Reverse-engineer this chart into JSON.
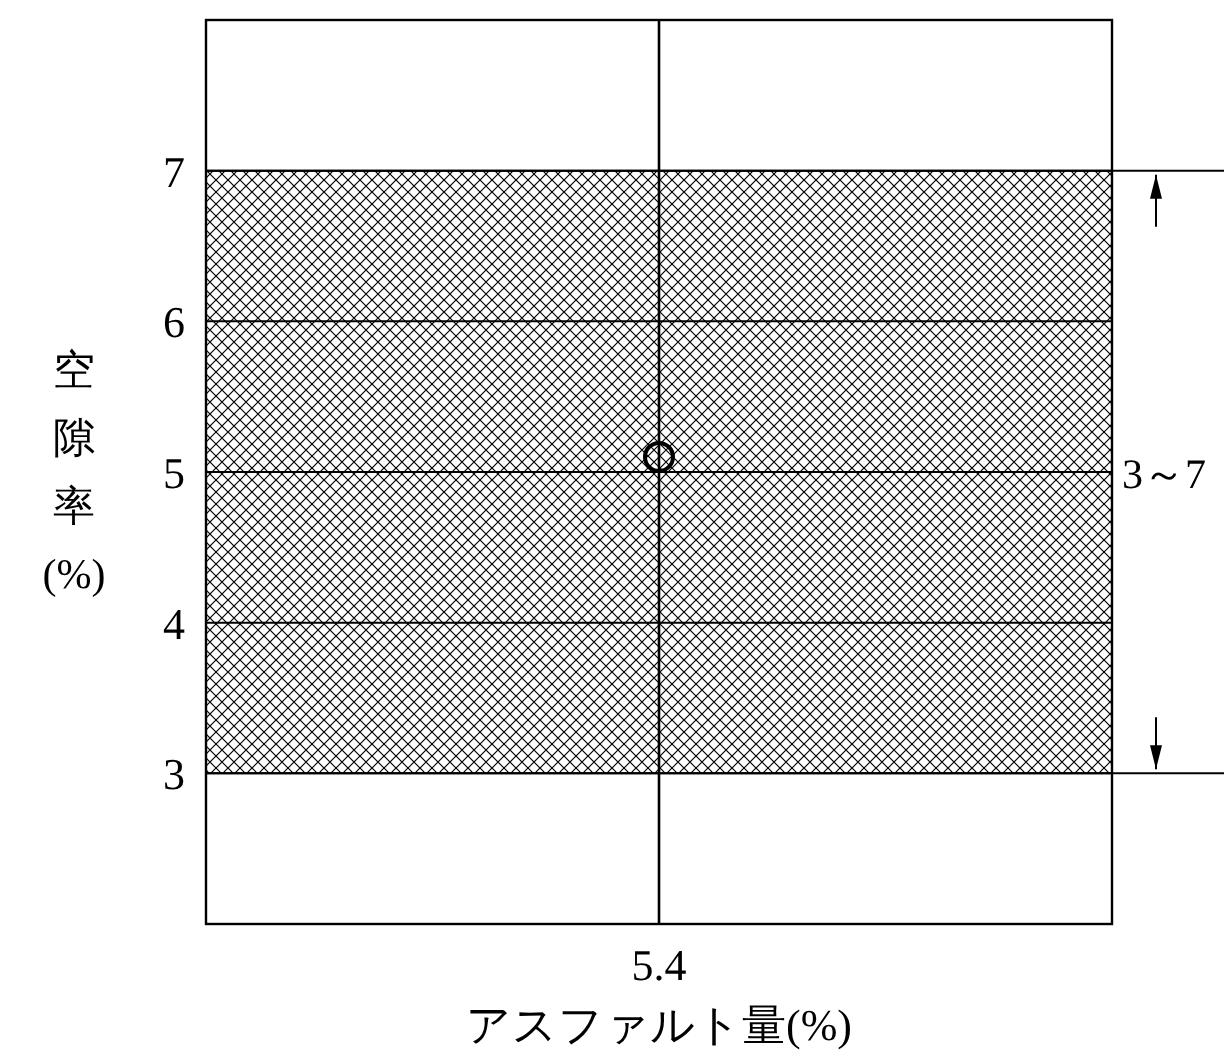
{
  "chart_data": {
    "type": "scatter",
    "xlabel": "アスファルト量(%)",
    "ylabel": "空隙率(%)",
    "categories": [
      "5.4"
    ],
    "values": [
      5.1
    ],
    "marker": "circle",
    "ylim": [
      2,
      8
    ],
    "yticks": [
      3,
      4,
      5,
      6,
      7
    ],
    "grid": "y",
    "ref_lines": [
      {
        "axis": "x",
        "value": "5.4"
      }
    ],
    "bands": [
      {
        "axis": "y",
        "from": 3,
        "to": 7,
        "label": "3～7"
      }
    ]
  }
}
